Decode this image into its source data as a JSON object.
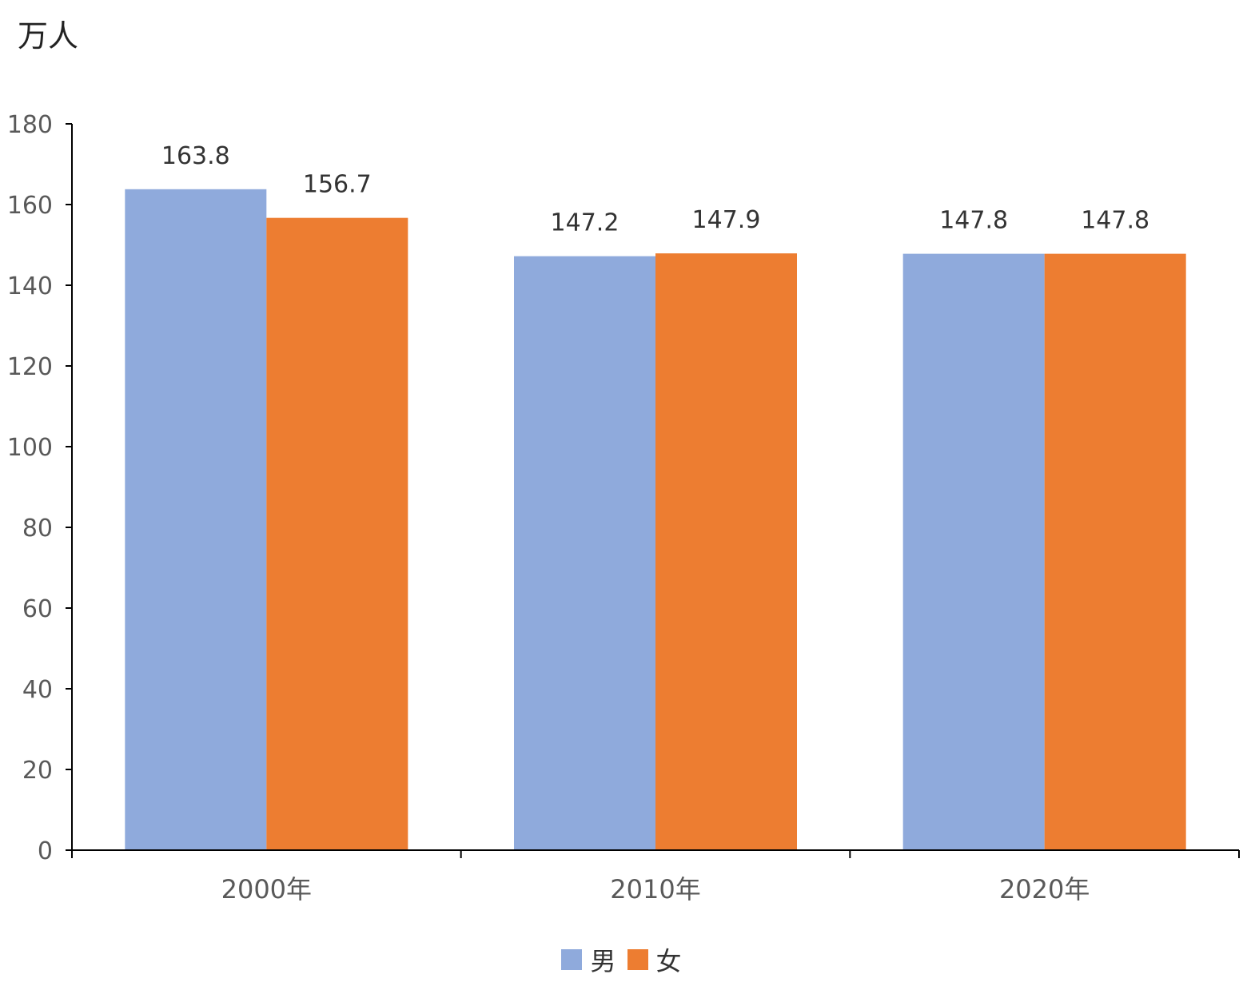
{
  "chart_data": {
    "type": "bar",
    "unit_label": "万人",
    "categories": [
      "2000年",
      "2010年",
      "2020年"
    ],
    "series": [
      {
        "name": "男",
        "values": [
          163.8,
          147.2,
          147.8
        ],
        "color": "#8faadc"
      },
      {
        "name": "女",
        "values": [
          156.7,
          147.9,
          147.8
        ],
        "color": "#ed7d31"
      }
    ],
    "ylim": [
      0,
      180
    ],
    "yticks": [
      0,
      20,
      40,
      60,
      80,
      100,
      120,
      140,
      160,
      180
    ],
    "data_labels": true,
    "grid": false,
    "legend_position": "bottom-center"
  }
}
